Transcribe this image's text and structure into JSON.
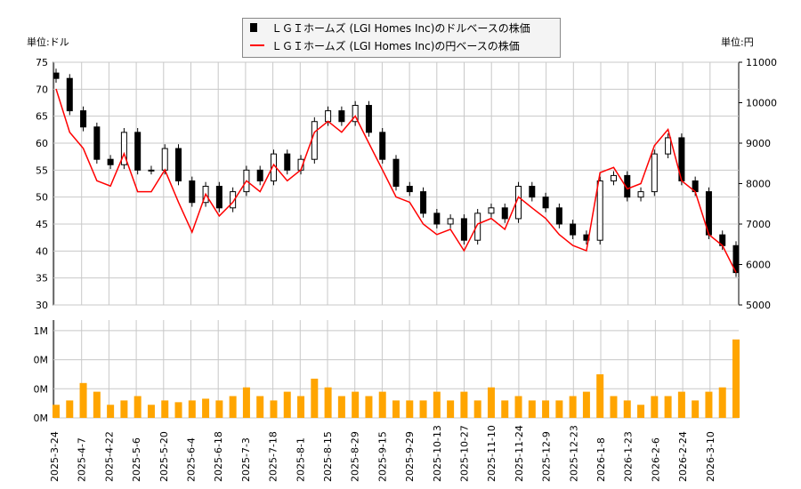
{
  "legend": {
    "usd": "ＬＧＩホームズ (LGI Homes Inc)のドルベースの株価",
    "jpy": "ＬＧＩホームズ (LGI Homes Inc)の円ベースの株価"
  },
  "units": {
    "left": "単位:ドル",
    "right": "単位:円"
  },
  "colors": {
    "usd": "#000000",
    "jpy": "#ff0000",
    "volume": "#ffa500",
    "grid": "#c8c8c8"
  },
  "chart_data": [
    {
      "type": "candlestick+line",
      "ylim_left": [
        30,
        75
      ],
      "ylim_right": [
        5000,
        11000
      ],
      "yticks_left": [
        30,
        35,
        40,
        45,
        50,
        55,
        60,
        65,
        70,
        75
      ],
      "yticks_right": [
        5000,
        6000,
        7000,
        8000,
        9000,
        10000,
        11000
      ],
      "xticks": [
        "2025-3-24",
        "2025-4-7",
        "2025-4-22",
        "2025-5-6",
        "2025-5-20",
        "2025-6-4",
        "2025-6-18",
        "2025-7-3",
        "2025-7-18",
        "2025-8-1",
        "2025-8-15",
        "2025-8-29",
        "2025-9-15",
        "2025-9-29",
        "2025-10-13",
        "2025-10-27",
        "2025-11-10",
        "2025-11-24",
        "2025-12-9",
        "2025-12-23",
        "2026-1-8",
        "2026-1-23",
        "2026-2-6",
        "2026-2-24",
        "2026-3-10"
      ],
      "grid": true,
      "usd_close": [
        72,
        66,
        63,
        57,
        56,
        62,
        55,
        55,
        59,
        53,
        49,
        52,
        48,
        51,
        55,
        53,
        58,
        55,
        57,
        64,
        66,
        64,
        67,
        62,
        57,
        52,
        51,
        47,
        45,
        46,
        42,
        47,
        48,
        46,
        52,
        50,
        48,
        45,
        43,
        42,
        53,
        54,
        50,
        51,
        58,
        61,
        53,
        51,
        43,
        41,
        36
      ],
      "jpy_line": [
        10340,
        9270,
        8870,
        8070,
        7940,
        8740,
        7800,
        7800,
        8340,
        7540,
        6800,
        7740,
        7200,
        7540,
        8070,
        7800,
        8470,
        8070,
        8340,
        9270,
        9540,
        9270,
        9670,
        9000,
        8340,
        7670,
        7540,
        7000,
        6740,
        6870,
        6340,
        7000,
        7140,
        6870,
        7670,
        7400,
        7140,
        6740,
        6470,
        6340,
        8270,
        8400,
        7870,
        8000,
        8940,
        9340,
        8070,
        7800,
        6740,
        6470,
        5800
      ]
    },
    {
      "type": "bar",
      "ylabel_ticks": [
        "0M",
        "0M",
        "0M",
        "1M"
      ],
      "volume_m": [
        0.15,
        0.2,
        0.4,
        0.3,
        0.15,
        0.2,
        0.25,
        0.15,
        0.2,
        0.18,
        0.2,
        0.22,
        0.2,
        0.25,
        0.35,
        0.25,
        0.2,
        0.3,
        0.25,
        0.45,
        0.35,
        0.25,
        0.3,
        0.25,
        0.3,
        0.2,
        0.2,
        0.2,
        0.3,
        0.2,
        0.3,
        0.2,
        0.35,
        0.2,
        0.25,
        0.2,
        0.2,
        0.2,
        0.25,
        0.3,
        0.5,
        0.25,
        0.2,
        0.15,
        0.25,
        0.25,
        0.3,
        0.2,
        0.3,
        0.35,
        0.9
      ]
    }
  ]
}
